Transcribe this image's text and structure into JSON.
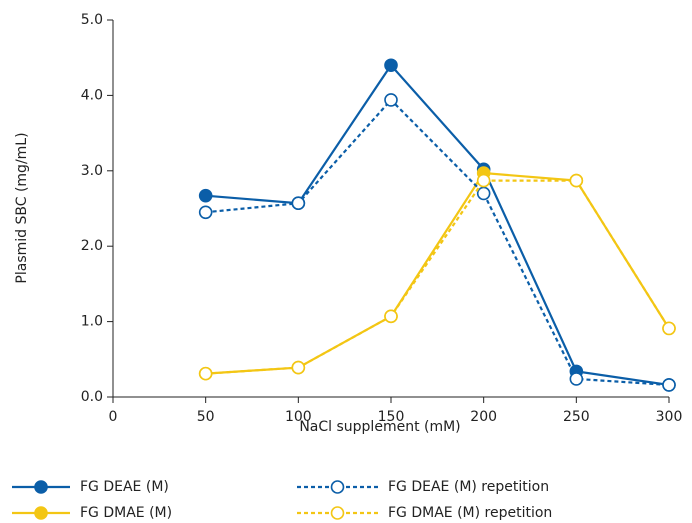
{
  "chart_data": {
    "type": "line",
    "x_label": "NaCl supplement (mM)",
    "y_label": "Plasmid SBC (mg/mL)",
    "x": [
      50,
      100,
      150,
      200,
      250,
      300
    ],
    "series": [
      {
        "name": "FG DEAE (M)",
        "color": "#0b5ea8",
        "dashed": false,
        "marker": "filled",
        "values": [
          2.67,
          2.57,
          4.4,
          3.02,
          0.34,
          0.16
        ]
      },
      {
        "name": "FG DMAE (M)",
        "color": "#f3c614",
        "dashed": false,
        "marker": "filled",
        "values": [
          0.31,
          0.39,
          1.07,
          2.97,
          2.87,
          0.91
        ]
      },
      {
        "name": "FG DEAE (M) repetition",
        "color": "#0b5ea8",
        "dashed": true,
        "marker": "open",
        "values": [
          2.45,
          2.57,
          3.94,
          2.7,
          0.24,
          0.16
        ]
      },
      {
        "name": "FG DMAE (M) repetition",
        "color": "#f3c614",
        "dashed": true,
        "marker": "open",
        "values": [
          0.31,
          0.39,
          1.07,
          2.87,
          2.87,
          0.91
        ]
      }
    ],
    "xlim": [
      0,
      300
    ],
    "xticks": [
      0,
      50,
      100,
      150,
      200,
      250,
      300
    ],
    "ylim": [
      0,
      5
    ],
    "yticks": [
      {
        "value": 0,
        "label": "0.0"
      },
      {
        "value": 1,
        "label": "1.0"
      },
      {
        "value": 2,
        "label": "2.0"
      },
      {
        "value": 3,
        "label": "3.0"
      },
      {
        "value": 4,
        "label": "4.0"
      },
      {
        "value": 5,
        "label": "5.0"
      }
    ]
  }
}
